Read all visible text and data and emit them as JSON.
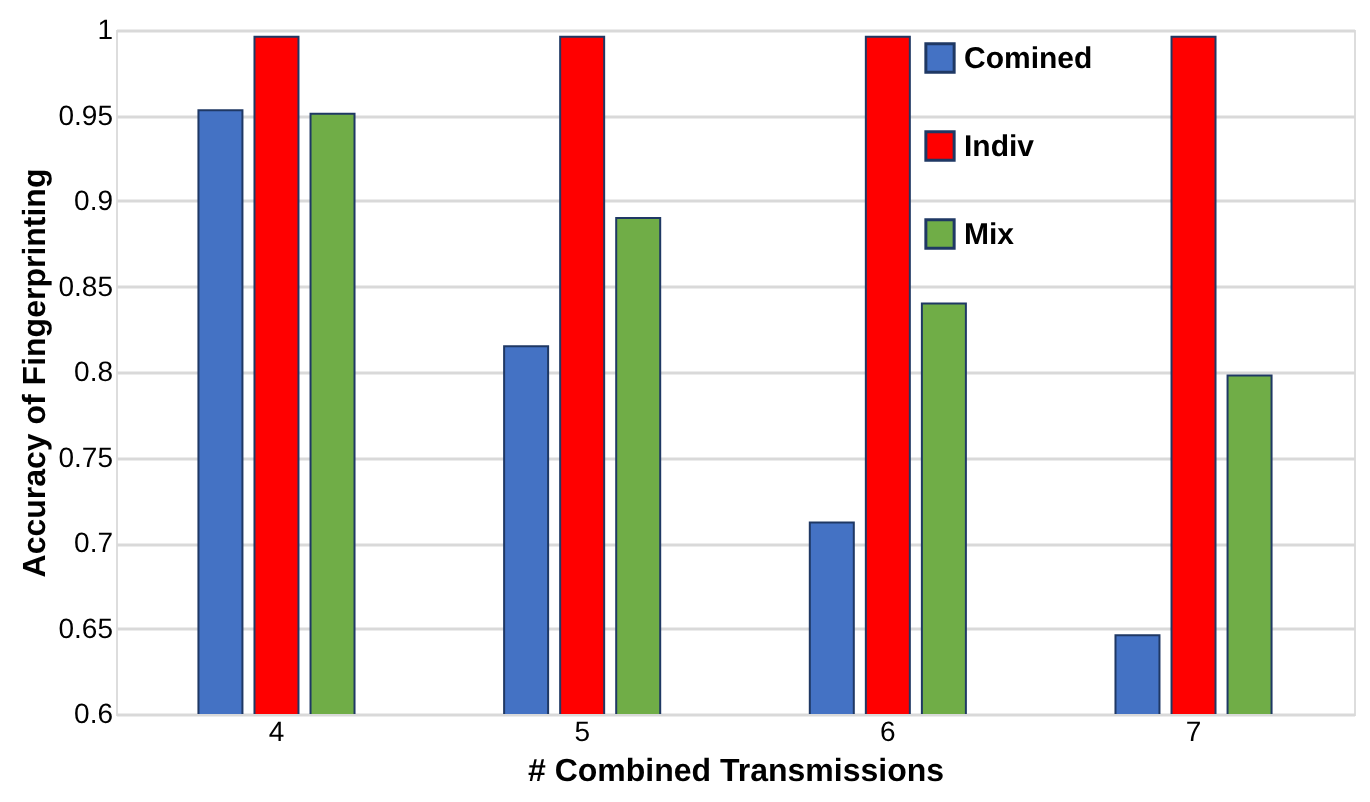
{
  "chart_data": {
    "type": "bar",
    "xlabel": "# Combined Transmissions",
    "ylabel": "Accuracy of Fingerprinting",
    "categories": [
      "4",
      "5",
      "6",
      "7"
    ],
    "series": [
      {
        "name": "Comined",
        "color": "#4472c4",
        "values": [
          0.953,
          0.815,
          0.712,
          0.646
        ]
      },
      {
        "name": "Indiv",
        "color": "#ff0000",
        "values": [
          0.996,
          0.996,
          0.996,
          0.996
        ]
      },
      {
        "name": "Mix",
        "color": "#70ad47",
        "values": [
          0.951,
          0.89,
          0.84,
          0.798
        ]
      }
    ],
    "ylim": [
      0.6,
      1
    ],
    "yticks": [
      0.6,
      0.65,
      0.7,
      0.75,
      0.8,
      0.85,
      0.9,
      0.95,
      1
    ],
    "grid": "y",
    "legend": "top right"
  }
}
